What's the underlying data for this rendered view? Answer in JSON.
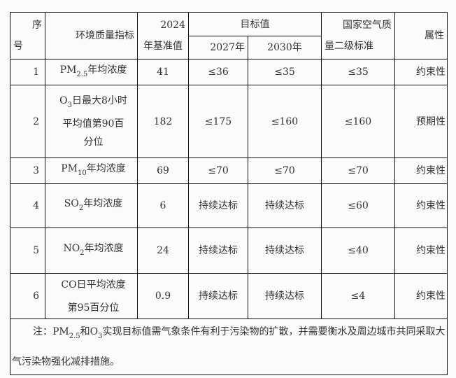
{
  "header": {
    "col_index": "序号",
    "col_index_a": "序",
    "col_index_b": "号",
    "col_indicator": "环境质量指标",
    "col_baseline_a": "2024",
    "col_baseline_b": "年基准值",
    "col_target": "目标值",
    "col_2027": "2027年",
    "col_2030": "2030年",
    "col_national_a": "国家空气质",
    "col_national_b": "量二级标准",
    "col_attr": "属性"
  },
  "rows": [
    {
      "no": "1",
      "ind_pre": "PM",
      "ind_sub": "2.5",
      "ind_post": "年均浓度",
      "baseline": "41",
      "t2027": "≤36",
      "t2030": "≤35",
      "national": "≤35",
      "attr": "约束性"
    },
    {
      "no": "2",
      "ind_pre": "O",
      "ind_sub": "3",
      "ind_post": "日最大8小时平均值第90百分位",
      "baseline": "182",
      "t2027": "≤175",
      "t2030": "≤160",
      "national": "≤160",
      "attr": "预期性"
    },
    {
      "no": "3",
      "ind_pre": "PM",
      "ind_sub": "10",
      "ind_post": "年均浓度",
      "baseline": "69",
      "t2027": "≤70",
      "t2030": "≤70",
      "national": "≤70",
      "attr": "约束性"
    },
    {
      "no": "4",
      "ind_pre": "SO",
      "ind_sub": "2",
      "ind_post": "年均浓度",
      "baseline": "6",
      "t2027": "持续达标",
      "t2030": "持续达标",
      "national": "≤60",
      "attr": "约束性"
    },
    {
      "no": "5",
      "ind_pre": "NO",
      "ind_sub": "2",
      "ind_post": "年均浓度",
      "baseline": "24",
      "t2027": "持续达标",
      "t2030": "持续达标",
      "national": "≤40",
      "attr": "约束性"
    },
    {
      "no": "6",
      "ind_pre": "",
      "ind_sub": "",
      "ind_post": "CO日平均浓度第95百分位",
      "baseline": "0.9",
      "t2027": "持续达标",
      "t2030": "持续达标",
      "national": "≤4",
      "attr": "约束性"
    }
  ],
  "note": {
    "p1": "注：PM",
    "s1": "2.5",
    "p2": "和O",
    "s2": "3",
    "p3": "实现目标值需气象条件有利于污染物的扩散，并需要衡水及周边城市共同采取大气污染物强化减排措施。"
  }
}
